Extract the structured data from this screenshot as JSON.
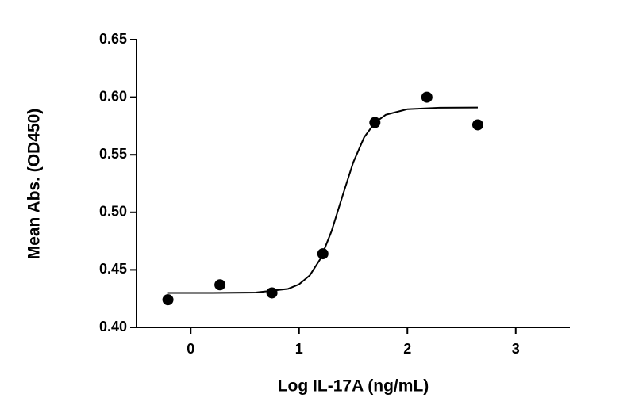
{
  "chart_data": {
    "type": "scatter",
    "xlabel": "Log IL-17A (ng/mL)",
    "ylabel": "Mean  Abs. (OD450)",
    "xlim": [
      -0.5,
      3.5
    ],
    "ylim": [
      0.4,
      0.65
    ],
    "xticks": [
      0,
      1,
      2,
      3
    ],
    "yticks": [
      {
        "value": 0.4,
        "label": "0.40"
      },
      {
        "value": 0.45,
        "label": "0.45"
      },
      {
        "value": 0.5,
        "label": "0.50"
      },
      {
        "value": 0.55,
        "label": "0.55"
      },
      {
        "value": 0.6,
        "label": "0.60"
      },
      {
        "value": 0.65,
        "label": "0.65"
      }
    ],
    "color": "#000000",
    "points": {
      "x": [
        -0.21,
        0.27,
        0.75,
        1.22,
        1.7,
        2.18,
        2.65
      ],
      "values": [
        0.424,
        0.437,
        0.43,
        0.464,
        0.578,
        0.6,
        0.576
      ]
    },
    "fit": {
      "x": [
        -0.21,
        0.2,
        0.6,
        0.9,
        1.0,
        1.1,
        1.2,
        1.3,
        1.4,
        1.5,
        1.6,
        1.7,
        1.8,
        2.0,
        2.3,
        2.65
      ],
      "values": [
        0.43,
        0.43,
        0.4303,
        0.4335,
        0.4374,
        0.4453,
        0.46,
        0.4836,
        0.5139,
        0.5433,
        0.565,
        0.5779,
        0.5847,
        0.5896,
        0.5909,
        0.591
      ]
    }
  }
}
